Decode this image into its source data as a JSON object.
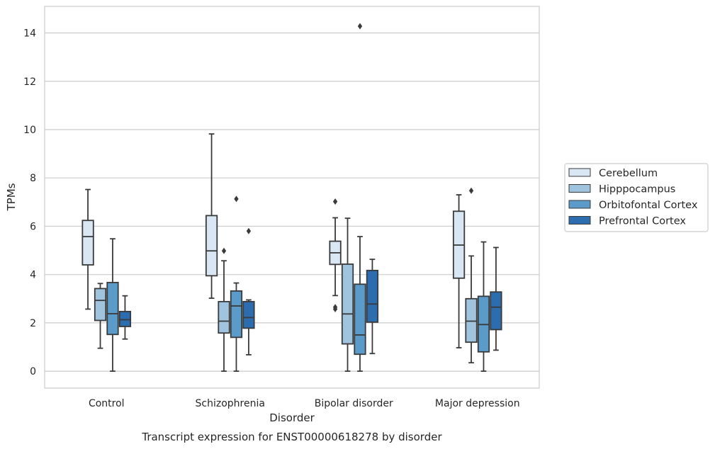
{
  "chart_data": {
    "type": "box",
    "title": "Transcript expression for ENST00000618278 by disorder",
    "xlabel": "Disorder",
    "ylabel": "TPMs",
    "ylim": [
      -0.7,
      15.1
    ],
    "yticks": [
      0,
      2,
      4,
      6,
      8,
      10,
      12,
      14
    ],
    "grid": true,
    "legend_position": "right",
    "categories": [
      "Control",
      "Schizophrenia",
      "Bipolar disorder",
      "Major depression"
    ],
    "series": [
      {
        "name": "Cerebellum",
        "color": "#d9e6f4",
        "boxes": [
          {
            "whisker_low": 2.57,
            "q1": 4.4,
            "median": 5.57,
            "q3": 6.24,
            "whisker_high": 7.52,
            "outliers": []
          },
          {
            "whisker_low": 3.02,
            "q1": 3.95,
            "median": 4.98,
            "q3": 6.44,
            "whisker_high": 9.82,
            "outliers": []
          },
          {
            "whisker_low": 3.13,
            "q1": 4.42,
            "median": 4.9,
            "q3": 5.38,
            "whisker_high": 6.35,
            "outliers": [
              2.57,
              2.65,
              7.02
            ]
          },
          {
            "whisker_low": 0.97,
            "q1": 3.85,
            "median": 5.22,
            "q3": 6.62,
            "whisker_high": 7.3,
            "outliers": []
          }
        ]
      },
      {
        "name": "Hipppocampus",
        "color": "#a1c4de",
        "boxes": [
          {
            "whisker_low": 0.95,
            "q1": 2.1,
            "median": 2.93,
            "q3": 3.42,
            "whisker_high": 3.63,
            "outliers": []
          },
          {
            "whisker_low": 0.0,
            "q1": 1.58,
            "median": 2.07,
            "q3": 2.88,
            "whisker_high": 4.57,
            "outliers": [
              4.98
            ]
          },
          {
            "whisker_low": 0.0,
            "q1": 1.13,
            "median": 2.37,
            "q3": 4.43,
            "whisker_high": 6.33,
            "outliers": []
          },
          {
            "whisker_low": 0.35,
            "q1": 1.2,
            "median": 2.07,
            "q3": 3.0,
            "whisker_high": 4.77,
            "outliers": [
              7.47
            ]
          }
        ]
      },
      {
        "name": "Orbitofontal Cortex",
        "color": "#5a9bc9",
        "boxes": [
          {
            "whisker_low": 0.0,
            "q1": 1.52,
            "median": 2.38,
            "q3": 3.67,
            "whisker_high": 5.48,
            "outliers": []
          },
          {
            "whisker_low": 0.0,
            "q1": 1.4,
            "median": 2.7,
            "q3": 3.32,
            "whisker_high": 3.65,
            "outliers": [
              7.13
            ]
          },
          {
            "whisker_low": 0.0,
            "q1": 0.7,
            "median": 1.5,
            "q3": 3.6,
            "whisker_high": 5.57,
            "outliers": [
              14.28
            ]
          },
          {
            "whisker_low": 0.0,
            "q1": 0.8,
            "median": 1.93,
            "q3": 3.1,
            "whisker_high": 5.35,
            "outliers": []
          }
        ]
      },
      {
        "name": "Prefrontal Cortex",
        "color": "#2c6db0",
        "boxes": [
          {
            "whisker_low": 1.33,
            "q1": 1.85,
            "median": 2.13,
            "q3": 2.47,
            "whisker_high": 3.12,
            "outliers": []
          },
          {
            "whisker_low": 0.68,
            "q1": 1.78,
            "median": 2.22,
            "q3": 2.88,
            "whisker_high": 2.95,
            "outliers": [
              5.8
            ]
          },
          {
            "whisker_low": 0.73,
            "q1": 2.03,
            "median": 2.78,
            "q3": 4.17,
            "whisker_high": 4.63,
            "outliers": []
          },
          {
            "whisker_low": 0.87,
            "q1": 1.72,
            "median": 2.65,
            "q3": 3.28,
            "whisker_high": 5.12,
            "outliers": []
          }
        ]
      }
    ]
  }
}
